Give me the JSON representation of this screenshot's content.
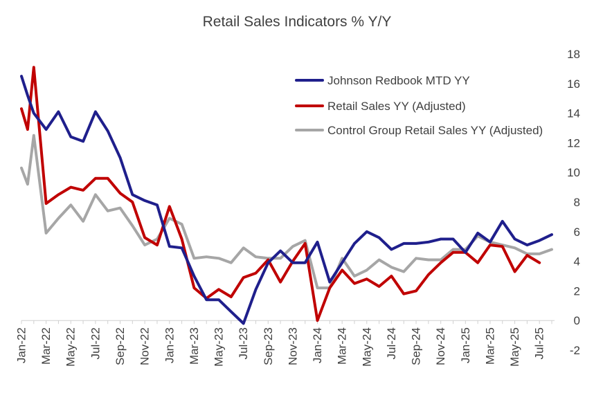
{
  "chart_data": {
    "type": "line",
    "title": "Retail Sales Indicators % Y/Y",
    "xlabel": "",
    "ylabel": "",
    "ylim": [
      -2,
      18
    ],
    "yticks": [
      -2,
      0,
      2,
      4,
      6,
      8,
      10,
      12,
      14,
      16,
      18
    ],
    "y_axis_position": "right",
    "grid": false,
    "legend_position": "top-right",
    "x_tick_labels": [
      "Jan-22",
      "Mar-22",
      "May-22",
      "Jul-22",
      "Sep-22",
      "Nov-22",
      "Jan-23",
      "Mar-23",
      "May-23",
      "Jul-23",
      "Sep-23",
      "Nov-23",
      "Jan-24",
      "Mar-24",
      "May-24",
      "Jul-24",
      "Sep-24",
      "Nov-24",
      "Jan-25",
      "Mar-25",
      "May-25",
      "Jul-25"
    ],
    "x": [
      "Jan-22",
      "Feb-22",
      "Mar-22",
      "Apr-22",
      "May-22",
      "Jun-22",
      "Jul-22",
      "Aug-22",
      "Sep-22",
      "Oct-22",
      "Nov-22",
      "Dec-22",
      "Jan-23",
      "Feb-23",
      "Mar-23",
      "Apr-23",
      "May-23",
      "Jun-23",
      "Jul-23",
      "Aug-23",
      "Sep-23",
      "Oct-23",
      "Nov-23",
      "Dec-23",
      "Jan-24",
      "Feb-24",
      "Mar-24",
      "Apr-24",
      "May-24",
      "Jun-24",
      "Jul-24",
      "Aug-24",
      "Sep-24",
      "Oct-24",
      "Nov-24",
      "Dec-24",
      "Jan-25",
      "Feb-25",
      "Mar-25",
      "Apr-25",
      "May-25",
      "Jun-25",
      "Jul-25",
      "Aug-25"
    ],
    "series": [
      {
        "name": "Johnson Redbook MTD YY",
        "color": "#1f1f8c",
        "points": [
          [
            "Jan-22",
            16.5
          ],
          [
            "Jan-22",
            15.2
          ],
          [
            "Feb-22",
            14.0
          ],
          [
            "Mar-22",
            12.9
          ],
          [
            "Apr-22",
            14.1
          ],
          [
            "May-22",
            12.4
          ],
          [
            "Jun-22",
            12.1
          ],
          [
            "Jul-22",
            14.1
          ],
          [
            "Aug-22",
            12.8
          ],
          [
            "Sep-22",
            11.0
          ],
          [
            "Oct-22",
            8.5
          ],
          [
            "Nov-22",
            8.1
          ],
          [
            "Dec-22",
            7.8
          ],
          [
            "Jan-23",
            5.0
          ],
          [
            "Feb-23",
            4.9
          ],
          [
            "Mar-23",
            3.0
          ],
          [
            "Apr-23",
            1.4
          ],
          [
            "May-23",
            1.4
          ],
          [
            "Jun-23",
            0.6
          ],
          [
            "Jul-23",
            -0.2
          ],
          [
            "Aug-23",
            2.1
          ],
          [
            "Sep-23",
            3.9
          ],
          [
            "Oct-23",
            4.7
          ],
          [
            "Nov-23",
            3.9
          ],
          [
            "Dec-23",
            3.9
          ],
          [
            "Jan-24",
            5.3
          ],
          [
            "Feb-24",
            2.6
          ],
          [
            "Mar-24",
            3.9
          ],
          [
            "Apr-24",
            5.2
          ],
          [
            "May-24",
            6.0
          ],
          [
            "Jun-24",
            5.6
          ],
          [
            "Jul-24",
            4.8
          ],
          [
            "Aug-24",
            5.2
          ],
          [
            "Sep-24",
            5.2
          ],
          [
            "Oct-24",
            5.3
          ],
          [
            "Nov-24",
            5.5
          ],
          [
            "Dec-24",
            5.5
          ],
          [
            "Jan-25",
            4.6
          ],
          [
            "Feb-25",
            5.9
          ],
          [
            "Mar-25",
            5.3
          ],
          [
            "Apr-25",
            6.7
          ],
          [
            "May-25",
            5.5
          ],
          [
            "Jun-25",
            5.1
          ],
          [
            "Jul-25",
            5.4
          ],
          [
            "Aug-25",
            5.8
          ]
        ]
      },
      {
        "name": "Retail Sales YY (Adjusted)",
        "color": "#c00000",
        "points": [
          [
            "Jan-22",
            14.3
          ],
          [
            "Jan-22",
            12.9
          ],
          [
            "Feb-22",
            17.1
          ],
          [
            "Mar-22",
            7.9
          ],
          [
            "Apr-22",
            8.5
          ],
          [
            "May-22",
            9.0
          ],
          [
            "Jun-22",
            8.8
          ],
          [
            "Jul-22",
            9.6
          ],
          [
            "Aug-22",
            9.6
          ],
          [
            "Sep-22",
            8.6
          ],
          [
            "Oct-22",
            8.0
          ],
          [
            "Nov-22",
            5.6
          ],
          [
            "Dec-22",
            5.1
          ],
          [
            "Jan-23",
            7.7
          ],
          [
            "Feb-23",
            5.5
          ],
          [
            "Mar-23",
            2.2
          ],
          [
            "Apr-23",
            1.5
          ],
          [
            "May-23",
            2.1
          ],
          [
            "Jun-23",
            1.6
          ],
          [
            "Jul-23",
            2.9
          ],
          [
            "Aug-23",
            3.2
          ],
          [
            "Sep-23",
            4.1
          ],
          [
            "Oct-23",
            2.6
          ],
          [
            "Nov-23",
            4.0
          ],
          [
            "Dec-23",
            5.2
          ],
          [
            "Jan-24",
            0.0
          ],
          [
            "Feb-24",
            2.2
          ],
          [
            "Mar-24",
            3.4
          ],
          [
            "Apr-24",
            2.5
          ],
          [
            "May-24",
            2.8
          ],
          [
            "Jun-24",
            2.3
          ],
          [
            "Jul-24",
            3.0
          ],
          [
            "Aug-24",
            1.8
          ],
          [
            "Sep-24",
            2.0
          ],
          [
            "Oct-24",
            3.1
          ],
          [
            "Nov-24",
            3.9
          ],
          [
            "Dec-24",
            4.6
          ],
          [
            "Jan-25",
            4.6
          ],
          [
            "Feb-25",
            3.9
          ],
          [
            "Mar-25",
            5.1
          ],
          [
            "Apr-25",
            5.0
          ],
          [
            "May-25",
            3.3
          ],
          [
            "Jun-25",
            4.4
          ],
          [
            "Jul-25",
            3.9
          ]
        ]
      },
      {
        "name": "Control Group Retail Sales YY (Adjusted)",
        "color": "#a6a6a6",
        "points": [
          [
            "Jan-22",
            10.3
          ],
          [
            "Jan-22",
            9.2
          ],
          [
            "Feb-22",
            12.5
          ],
          [
            "Mar-22",
            5.9
          ],
          [
            "Apr-22",
            6.9
          ],
          [
            "May-22",
            7.8
          ],
          [
            "Jun-22",
            6.7
          ],
          [
            "Jul-22",
            8.5
          ],
          [
            "Aug-22",
            7.4
          ],
          [
            "Sep-22",
            7.6
          ],
          [
            "Oct-22",
            6.4
          ],
          [
            "Nov-22",
            5.1
          ],
          [
            "Dec-22",
            5.5
          ],
          [
            "Jan-23",
            6.9
          ],
          [
            "Feb-23",
            6.5
          ],
          [
            "Mar-23",
            4.2
          ],
          [
            "Apr-23",
            4.3
          ],
          [
            "May-23",
            4.2
          ],
          [
            "Jun-23",
            3.9
          ],
          [
            "Jul-23",
            4.9
          ],
          [
            "Aug-23",
            4.3
          ],
          [
            "Sep-23",
            4.2
          ],
          [
            "Oct-23",
            4.2
          ],
          [
            "Nov-23",
            5.0
          ],
          [
            "Dec-23",
            5.4
          ],
          [
            "Jan-24",
            2.2
          ],
          [
            "Feb-24",
            2.2
          ],
          [
            "Mar-24",
            4.2
          ],
          [
            "Apr-24",
            3.0
          ],
          [
            "May-24",
            3.4
          ],
          [
            "Jun-24",
            4.1
          ],
          [
            "Jul-24",
            3.6
          ],
          [
            "Aug-24",
            3.3
          ],
          [
            "Sep-24",
            4.2
          ],
          [
            "Oct-24",
            4.1
          ],
          [
            "Nov-24",
            4.1
          ],
          [
            "Dec-24",
            4.8
          ],
          [
            "Jan-25",
            4.8
          ],
          [
            "Feb-25",
            5.7
          ],
          [
            "Mar-25",
            5.3
          ],
          [
            "Apr-25",
            5.1
          ],
          [
            "May-25",
            4.9
          ],
          [
            "Jun-25",
            4.5
          ],
          [
            "Jul-25",
            4.5
          ],
          [
            "Aug-25",
            4.8
          ]
        ]
      }
    ]
  }
}
